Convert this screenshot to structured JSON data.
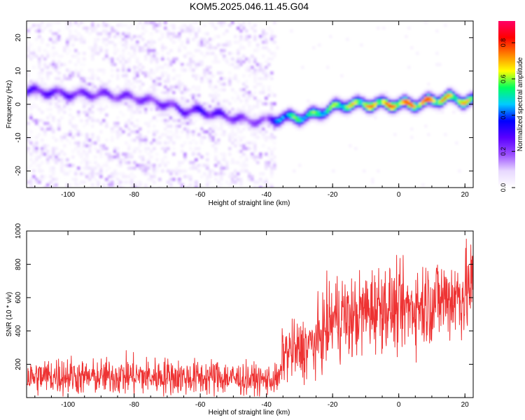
{
  "title": "KOM5.2025.046.11.45.G04",
  "chart_data": [
    {
      "type": "heatmap",
      "xlabel": "Height of straight line (km)",
      "ylabel": "Frequency (Hz)",
      "xlim": [
        -112.5,
        22.5
      ],
      "ylim": [
        -25,
        25
      ],
      "x_ticks": [
        -100,
        -80,
        -60,
        -40,
        -20,
        0,
        20
      ],
      "y_ticks": [
        -20,
        -10,
        0,
        10,
        20
      ],
      "colorbar": {
        "label": "Normalized spectral amplitude",
        "range": [
          0,
          0.92
        ],
        "ticks": [
          0.0,
          0.2,
          0.4,
          0.6,
          0.8
        ],
        "colormap": [
          "#ffffff",
          "#e8d8ff",
          "#9a4dff",
          "#5a00ff",
          "#0000ff",
          "#00ccff",
          "#00ff60",
          "#ffff00",
          "#ff8000",
          "#ff0000",
          "#ff0066"
        ]
      },
      "ridge": {
        "x": [
          -110,
          -100,
          -90,
          -80,
          -75,
          -70,
          -65,
          -60,
          -55,
          -50,
          -45,
          -40,
          -35,
          -30,
          -25,
          -20,
          -15,
          -10,
          -5,
          0,
          5,
          10,
          15,
          20
        ],
        "frequency": [
          4,
          3,
          3,
          2,
          1,
          0,
          -2,
          -2,
          -3,
          -4,
          -5,
          -5,
          -4,
          -4,
          -3,
          -1,
          0,
          0,
          0,
          0,
          0,
          1,
          2,
          1
        ],
        "amplitude": [
          0.3,
          0.28,
          0.25,
          0.25,
          0.24,
          0.26,
          0.28,
          0.33,
          0.3,
          0.26,
          0.22,
          0.22,
          0.55,
          0.6,
          0.58,
          0.62,
          0.66,
          0.72,
          0.76,
          0.8,
          0.8,
          0.78,
          0.72,
          0.7
        ]
      }
    },
    {
      "type": "line",
      "xlabel": "Height of straight line (km)",
      "ylabel": "SNR (10 * v/v)",
      "xlim": [
        -112.5,
        22.5
      ],
      "ylim": [
        0,
        1000
      ],
      "x_ticks": [
        -100,
        -80,
        -60,
        -40,
        -20,
        0,
        20
      ],
      "y_ticks": [
        200,
        400,
        600,
        800,
        1000
      ],
      "series": [
        {
          "color": "#ee3333",
          "x": [
            -112.5,
            -105,
            -100,
            -95,
            -90,
            -85,
            -80,
            -75,
            -70,
            -65,
            -60,
            -55,
            -50,
            -45,
            -40,
            -36,
            -35,
            -30,
            -25,
            -20,
            -17,
            -15,
            -10,
            -5,
            0,
            5,
            10,
            15,
            20,
            22.5
          ],
          "mean": [
            120,
            130,
            135,
            120,
            125,
            130,
            130,
            125,
            130,
            120,
            120,
            125,
            115,
            110,
            105,
            110,
            270,
            280,
            330,
            470,
            500,
            460,
            520,
            560,
            520,
            550,
            580,
            600,
            620,
            680
          ],
          "spread": [
            90,
            100,
            110,
            90,
            95,
            100,
            110,
            100,
            100,
            95,
            95,
            100,
            90,
            85,
            80,
            80,
            150,
            170,
            180,
            220,
            250,
            220,
            230,
            230,
            220,
            230,
            240,
            240,
            250,
            250
          ]
        }
      ]
    }
  ]
}
